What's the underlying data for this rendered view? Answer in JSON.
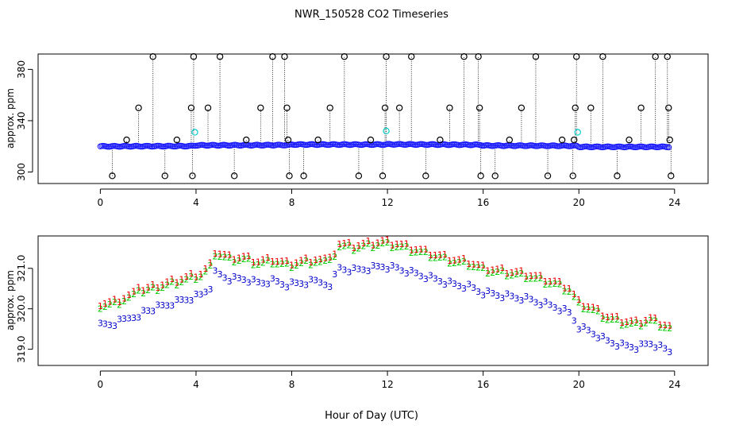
{
  "figure": {
    "title": "NWR_150528  CO2 Timeseries",
    "xlabel": "Hour of Day (UTC)"
  },
  "colors": {
    "raw": "#000000",
    "mean": "#1a1aff",
    "cyan": "#00cccc",
    "label1": "#ee0000",
    "label2": "#00cc00",
    "label3": "#0000cc",
    "stem": "#000000"
  },
  "chart_data": [
    {
      "type": "scatter",
      "name": "top-panel",
      "ylabel": "approx. ppm",
      "xlim": [
        -2.6,
        25.4
      ],
      "ylim": [
        291,
        392
      ],
      "xticks": [
        0,
        4,
        8,
        12,
        16,
        20,
        24
      ],
      "yticks": [
        300,
        340,
        380
      ],
      "baseline_segments": [
        [
          [
            0.0,
            320.0
          ],
          [
            3.8,
            320.2
          ],
          [
            4.0,
            320.8
          ],
          [
            7.9,
            321.0
          ],
          [
            8.0,
            321.4
          ],
          [
            11.9,
            321.4
          ],
          [
            12.0,
            321.6
          ],
          [
            15.9,
            321.2
          ],
          [
            16.0,
            320.6
          ],
          [
            19.9,
            320.4
          ],
          [
            20.0,
            319.6
          ],
          [
            23.8,
            319.6
          ]
        ]
      ],
      "high_outliers": [
        [
          0.5,
          297
        ],
        [
          1.1,
          325
        ],
        [
          1.6,
          350
        ],
        [
          2.2,
          390
        ],
        [
          2.7,
          297
        ],
        [
          3.2,
          325
        ],
        [
          3.8,
          350
        ],
        [
          3.85,
          297
        ],
        [
          3.9,
          390
        ],
        [
          4.5,
          350
        ],
        [
          5.0,
          390
        ],
        [
          5.6,
          297
        ],
        [
          6.1,
          325
        ],
        [
          6.7,
          350
        ],
        [
          7.2,
          390
        ],
        [
          7.7,
          390
        ],
        [
          7.8,
          350
        ],
        [
          7.85,
          325
        ],
        [
          7.9,
          297
        ],
        [
          8.5,
          297
        ],
        [
          9.1,
          325
        ],
        [
          9.6,
          350
        ],
        [
          10.2,
          390
        ],
        [
          10.8,
          297
        ],
        [
          11.3,
          325
        ],
        [
          11.8,
          297
        ],
        [
          11.9,
          350
        ],
        [
          11.95,
          390
        ],
        [
          12.5,
          350
        ],
        [
          13.0,
          390
        ],
        [
          13.6,
          297
        ],
        [
          14.2,
          325
        ],
        [
          14.6,
          350
        ],
        [
          15.2,
          390
        ],
        [
          15.8,
          390
        ],
        [
          15.85,
          350
        ],
        [
          15.9,
          297
        ],
        [
          16.5,
          297
        ],
        [
          17.1,
          325
        ],
        [
          17.6,
          350
        ],
        [
          18.2,
          390
        ],
        [
          18.7,
          297
        ],
        [
          19.3,
          325
        ],
        [
          19.75,
          297
        ],
        [
          19.8,
          325
        ],
        [
          19.85,
          350
        ],
        [
          19.9,
          390
        ],
        [
          20.5,
          350
        ],
        [
          21.0,
          390
        ],
        [
          21.6,
          297
        ],
        [
          22.1,
          325
        ],
        [
          22.6,
          350
        ],
        [
          23.2,
          390
        ],
        [
          23.7,
          390
        ],
        [
          23.75,
          350
        ],
        [
          23.8,
          325
        ],
        [
          23.85,
          297
        ]
      ],
      "cyan_points": [
        [
          3.95,
          331
        ],
        [
          11.95,
          332
        ],
        [
          19.95,
          331
        ]
      ]
    },
    {
      "type": "scatter",
      "name": "bottom-panel",
      "ylabel": "approx. ppm",
      "xlim": [
        -2.6,
        25.4
      ],
      "ylim": [
        318.6,
        321.8
      ],
      "xticks": [
        0,
        4,
        8,
        12,
        16,
        20,
        24
      ],
      "yticks": [
        319.0,
        320.0,
        321.0
      ],
      "ytick_labels": [
        "319.0",
        "320.0",
        "321.0"
      ],
      "series_labels": [
        "1",
        "2",
        "3"
      ],
      "profile_hours": [
        0,
        0.6,
        1.2,
        1.8,
        2.4,
        3.0,
        3.6,
        4.2,
        4.6,
        4.8,
        5.4,
        6.0,
        6.6,
        7.2,
        7.8,
        8.4,
        9.0,
        9.6,
        10.0,
        10.6,
        11.2,
        11.8,
        12.4,
        13.0,
        13.6,
        14.2,
        14.8,
        15.4,
        16.0,
        16.6,
        17.2,
        17.8,
        18.4,
        19.0,
        19.6,
        20.0,
        20.6,
        21.2,
        21.8,
        22.4,
        23.0,
        23.8
      ],
      "profile_values": [
        319.95,
        320.0,
        320.15,
        320.3,
        320.4,
        320.5,
        320.6,
        320.7,
        320.9,
        321.25,
        321.1,
        321.1,
        321.0,
        321.05,
        320.95,
        321.0,
        321.05,
        321.0,
        321.4,
        321.35,
        321.4,
        321.45,
        321.4,
        321.3,
        321.2,
        321.1,
        321.0,
        320.95,
        320.8,
        320.75,
        320.7,
        320.65,
        320.55,
        320.45,
        320.3,
        319.95,
        319.8,
        319.6,
        319.5,
        319.45,
        319.55,
        319.35
      ],
      "offsets": {
        "1": 0.12,
        "2": 0.05,
        "3": -0.3
      },
      "point_interval_hours": 0.2
    }
  ]
}
